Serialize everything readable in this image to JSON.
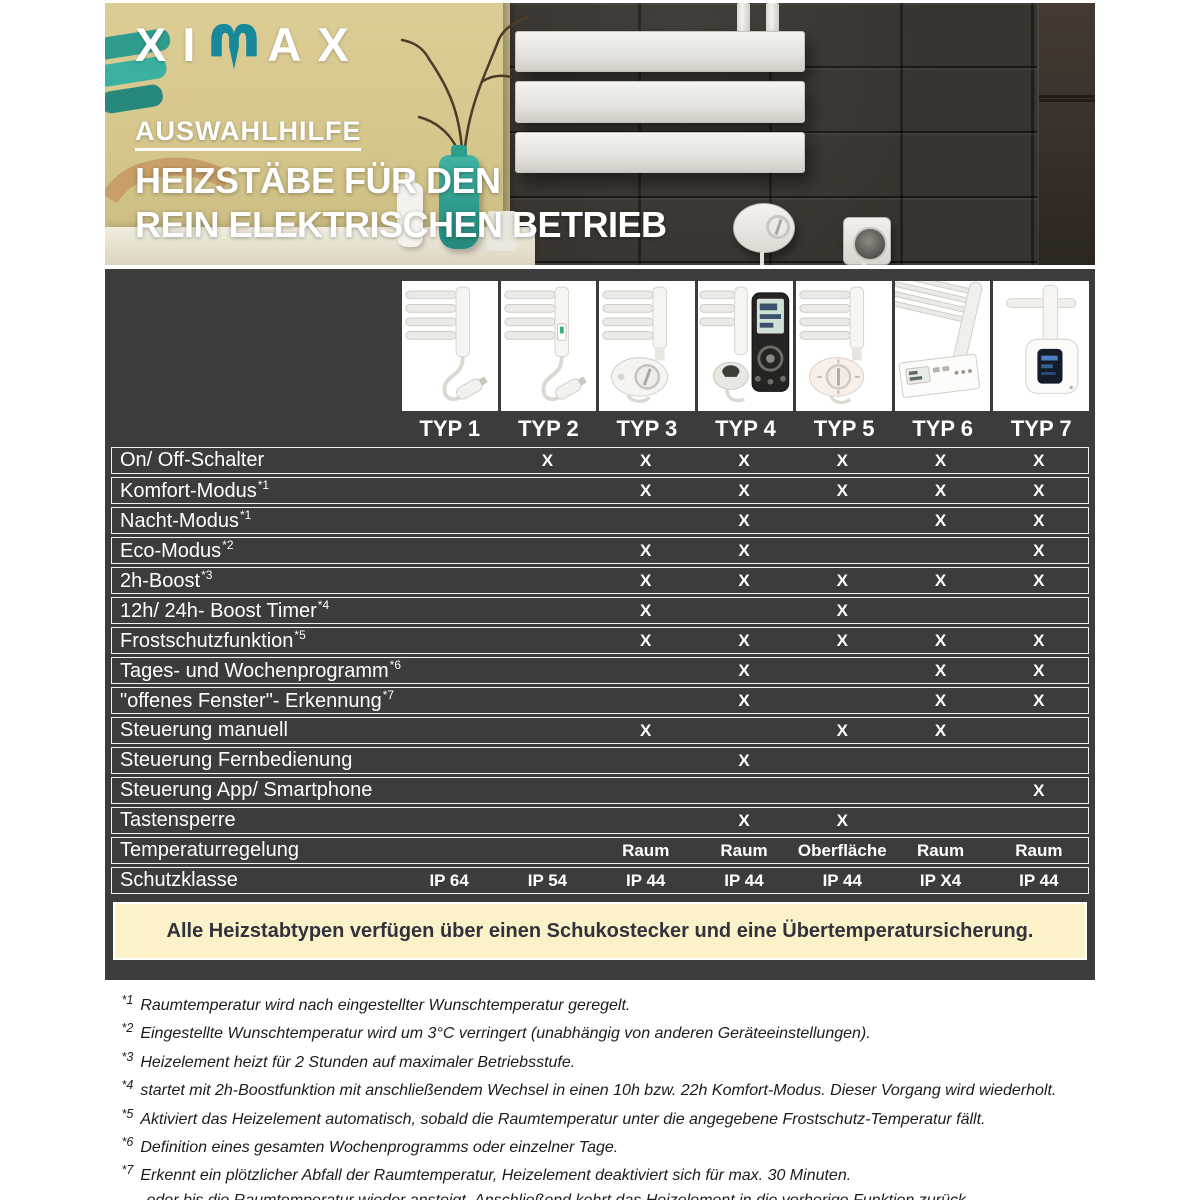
{
  "brand": {
    "logo_left": "XI",
    "logo_right": "AX",
    "teal": "#18899a"
  },
  "hero": {
    "eyebrow": "AUSWAHLHILFE",
    "title_line1": "HEIZSTÄBE FÜR DEN",
    "title_line2": "REIN ELEKTRISCHEN BETRIEB"
  },
  "table": {
    "columns": [
      "TYP 1",
      "TYP 2",
      "TYP 3",
      "TYP 4",
      "TYP 5",
      "TYP 6",
      "TYP 7"
    ],
    "product_images": [
      "typ1-heating-rod-with-cable",
      "typ2-heating-rod-with-switch",
      "typ3-control-head-with-dial",
      "typ4-control-head-with-remote",
      "typ5-control-head-with-dial",
      "typ6-radiator-control-panel",
      "typ7-wall-control-box-display"
    ],
    "rows": [
      {
        "label": "On/ Off-Schalter",
        "sup": "",
        "cells": [
          "",
          "X",
          "X",
          "X",
          "X",
          "X",
          "X"
        ]
      },
      {
        "label": "Komfort-Modus",
        "sup": "*1",
        "cells": [
          "",
          "",
          "X",
          "X",
          "X",
          "X",
          "X"
        ]
      },
      {
        "label": "Nacht-Modus",
        "sup": "*1",
        "cells": [
          "",
          "",
          "",
          "X",
          "",
          "X",
          "X"
        ]
      },
      {
        "label": "Eco-Modus",
        "sup": "*2",
        "cells": [
          "",
          "",
          "X",
          "X",
          "",
          "",
          "X"
        ]
      },
      {
        "label": "2h-Boost",
        "sup": "*3",
        "cells": [
          "",
          "",
          "X",
          "X",
          "X",
          "X",
          "X"
        ]
      },
      {
        "label": "12h/ 24h- Boost Timer",
        "sup": "*4",
        "cells": [
          "",
          "",
          "X",
          "",
          "X",
          "",
          ""
        ]
      },
      {
        "label": "Frostschutzfunktion",
        "sup": "*5",
        "cells": [
          "",
          "",
          "X",
          "X",
          "X",
          "X",
          "X"
        ]
      },
      {
        "label": "Tages- und Wochenprogramm",
        "sup": "*6",
        "cells": [
          "",
          "",
          "",
          "X",
          "",
          "X",
          "X"
        ]
      },
      {
        "label": "\"offenes Fenster\"- Erkennung",
        "sup": "*7",
        "cells": [
          "",
          "",
          "",
          "X",
          "",
          "X",
          "X"
        ]
      },
      {
        "label": "Steuerung manuell",
        "sup": "",
        "cells": [
          "",
          "",
          "X",
          "",
          "X",
          "X",
          ""
        ]
      },
      {
        "label": "Steuerung Fernbedienung",
        "sup": "",
        "cells": [
          "",
          "",
          "",
          "X",
          "",
          "",
          ""
        ]
      },
      {
        "label": "Steuerung App/ Smartphone",
        "sup": "",
        "cells": [
          "",
          "",
          "",
          "",
          "",
          "",
          "X"
        ]
      },
      {
        "label": "Tastensperre",
        "sup": "",
        "cells": [
          "",
          "",
          "",
          "X",
          "X",
          "",
          ""
        ]
      },
      {
        "label": "Temperaturregelung",
        "sup": "",
        "cells": [
          "",
          "",
          "Raum",
          "Raum",
          "Oberfläche",
          "Raum",
          "Raum"
        ]
      },
      {
        "label": "Schutzklasse",
        "sup": "",
        "cells": [
          "IP 64",
          "IP 54",
          "IP 44",
          "IP 44",
          "IP 44",
          "IP X4",
          "IP 44"
        ]
      }
    ],
    "banner": "Alle Heizstabtypen verfügen über einen Schukostecker und eine Übertemperatursicherung."
  },
  "footnotes": [
    {
      "marker": "*1",
      "text": "Raumtemperatur wird nach eingestellter Wunschtemperatur geregelt."
    },
    {
      "marker": "*2",
      "text": "Eingestellte Wunschtemperatur wird um 3°C verringert (unabhängig von anderen Geräteeinstellungen)."
    },
    {
      "marker": "*3",
      "text": "Heizelement heizt für 2 Stunden auf maximaler Betriebsstufe."
    },
    {
      "marker": "*4",
      "text": "startet mit 2h-Boostfunktion mit anschließendem Wechsel in einen 10h bzw. 22h Komfort-Modus. Dieser Vorgang wird wiederholt."
    },
    {
      "marker": "*5",
      "text": "Aktiviert das Heizelement automatisch, sobald die Raumtemperatur unter die angegebene Frostschutz-Temperatur fällt."
    },
    {
      "marker": "*6",
      "text": "Definition eines gesamten Wochenprogramms oder einzelner Tage."
    },
    {
      "marker": "*7",
      "text": "Erkennt ein plötzlicher Abfall der Raumtemperatur, Heizelement deaktiviert sich für max. 30 Minuten."
    },
    {
      "marker": "",
      "text": "oder bis die Raumtemperatur wieder ansteigt. Anschließend kehrt das Heizelement in die vorherige Funktion zurück."
    }
  ],
  "colors": {
    "panel": "#3d3c3c",
    "banner_bg": "#fbf2c9",
    "teal": "#18899a",
    "wall": "#d5c68c"
  }
}
